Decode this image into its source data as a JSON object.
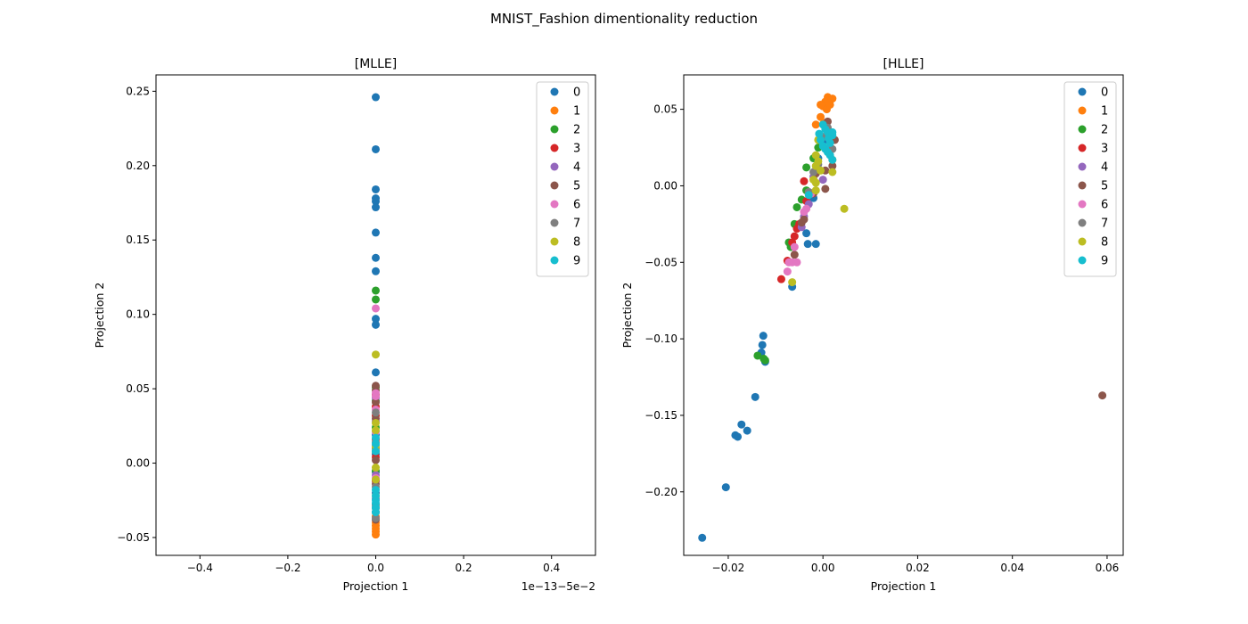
{
  "figure": {
    "suptitle": "MNIST_Fashion dimentionality reduction"
  },
  "palette": [
    "#1f77b4",
    "#ff7f0e",
    "#2ca02c",
    "#d62728",
    "#9467bd",
    "#8c564b",
    "#e377c2",
    "#7f7f7f",
    "#bcbd22",
    "#17becf"
  ],
  "chart_data": [
    {
      "type": "scatter",
      "title": "[MLLE]",
      "xlabel": "Projection 1",
      "ylabel": "Projection 2",
      "xlim": [
        -0.5,
        0.5
      ],
      "ylim": [
        -0.062,
        0.261
      ],
      "xticks": [
        -0.4,
        -0.2,
        0.0,
        0.2,
        0.4
      ],
      "xtick_labels": [
        "−0.4",
        "−0.2",
        "0.0",
        "0.2",
        "0.4"
      ],
      "yticks": [
        -0.05,
        0.0,
        0.05,
        0.1,
        0.15,
        0.2,
        0.25
      ],
      "ytick_labels": [
        "−0.05",
        "0.00",
        "0.05",
        "0.10",
        "0.15",
        "0.20",
        "0.25"
      ],
      "offset_text": "1e−13−5e−2",
      "grid": false,
      "legend": "upper right",
      "series": [
        {
          "name": "0",
          "points": [
            [
              0,
              0.246
            ],
            [
              0,
              0.211
            ],
            [
              0,
              0.184
            ],
            [
              0,
              0.178
            ],
            [
              0,
              0.176
            ],
            [
              0,
              0.172
            ],
            [
              0,
              0.155
            ],
            [
              0,
              0.138
            ],
            [
              0,
              0.129
            ],
            [
              0,
              0.097
            ],
            [
              0,
              0.093
            ],
            [
              0,
              0.061
            ],
            [
              0,
              0.019
            ],
            [
              0,
              0.006
            ],
            [
              0,
              -0.006
            ],
            [
              0,
              -0.02
            ],
            [
              0,
              -0.033
            ]
          ]
        },
        {
          "name": "1",
          "points": [
            [
              0,
              -0.048
            ],
            [
              0,
              -0.046
            ],
            [
              0,
              -0.044
            ],
            [
              0,
              -0.042
            ],
            [
              0,
              -0.04
            ],
            [
              0,
              -0.036
            ],
            [
              0,
              -0.03
            ]
          ]
        },
        {
          "name": "2",
          "points": [
            [
              0,
              0.116
            ],
            [
              0,
              0.11
            ],
            [
              0,
              0.051
            ],
            [
              0,
              0.042
            ],
            [
              0,
              0.024
            ],
            [
              0,
              0.008
            ],
            [
              0,
              -0.005
            ]
          ]
        },
        {
          "name": "3",
          "points": [
            [
              0,
              0.046
            ],
            [
              0,
              0.038
            ],
            [
              0,
              0.032
            ],
            [
              0,
              0.016
            ],
            [
              0,
              0.004
            ],
            [
              0,
              -0.012
            ]
          ]
        },
        {
          "name": "4",
          "points": [
            [
              0,
              0.044
            ],
            [
              0,
              0.028
            ],
            [
              0,
              0.012
            ],
            [
              0,
              -0.008
            ],
            [
              0,
              -0.024
            ]
          ]
        },
        {
          "name": "5",
          "points": [
            [
              0,
              0.052
            ],
            [
              0,
              0.049
            ],
            [
              0,
              0.041
            ],
            [
              0,
              0.03
            ],
            [
              0,
              0.01
            ],
            [
              0,
              0.002
            ],
            [
              0,
              -0.014
            ],
            [
              0,
              -0.028
            ],
            [
              0,
              -0.038
            ]
          ]
        },
        {
          "name": "6",
          "points": [
            [
              0,
              0.104
            ],
            [
              0,
              0.047
            ],
            [
              0,
              0.045
            ],
            [
              0,
              0.036
            ],
            [
              0,
              0.021
            ],
            [
              0,
              -0.01
            ]
          ]
        },
        {
          "name": "7",
          "points": [
            [
              0,
              0.034
            ],
            [
              0,
              0.014
            ],
            [
              0,
              -0.016
            ],
            [
              0,
              -0.03
            ],
            [
              0,
              -0.037
            ]
          ]
        },
        {
          "name": "8",
          "points": [
            [
              0,
              0.073
            ],
            [
              0,
              0.027
            ],
            [
              0,
              0.022
            ],
            [
              0,
              0.011
            ],
            [
              0,
              -0.003
            ],
            [
              0,
              -0.011
            ],
            [
              0,
              -0.022
            ]
          ]
        },
        {
          "name": "9",
          "points": [
            [
              0,
              0.017
            ],
            [
              0,
              0.013
            ],
            [
              0,
              0.008
            ],
            [
              0,
              -0.018
            ],
            [
              0,
              -0.022
            ],
            [
              0,
              -0.027
            ],
            [
              0,
              -0.03
            ],
            [
              0,
              -0.033
            ],
            [
              0,
              -0.025
            ]
          ]
        }
      ]
    },
    {
      "type": "scatter",
      "title": "[HLLE]",
      "xlabel": "Projection 1",
      "ylabel": "Projection 2",
      "xlim": [
        -0.0294,
        0.0634
      ],
      "ylim": [
        -0.2415,
        0.0725
      ],
      "xticks": [
        -0.02,
        0.0,
        0.02,
        0.04,
        0.06
      ],
      "xtick_labels": [
        "−0.02",
        "0.00",
        "0.02",
        "0.04",
        "0.06"
      ],
      "yticks": [
        -0.2,
        -0.15,
        -0.1,
        -0.05,
        0.0,
        0.05
      ],
      "ytick_labels": [
        "−0.20",
        "−0.15",
        "−0.10",
        "−0.05",
        "0.00",
        "0.05"
      ],
      "grid": false,
      "legend": "upper right",
      "series": [
        {
          "name": "0",
          "points": [
            [
              -0.0255,
              -0.23
            ],
            [
              -0.0205,
              -0.197
            ],
            [
              -0.0185,
              -0.163
            ],
            [
              -0.018,
              -0.164
            ],
            [
              -0.0172,
              -0.156
            ],
            [
              -0.016,
              -0.16
            ],
            [
              -0.0143,
              -0.138
            ],
            [
              -0.013,
              -0.109
            ],
            [
              -0.0128,
              -0.104
            ],
            [
              -0.0126,
              -0.098
            ],
            [
              -0.0122,
              -0.115
            ],
            [
              -0.0065,
              -0.066
            ],
            [
              -0.0035,
              -0.031
            ],
            [
              -0.0032,
              -0.038
            ],
            [
              -0.0015,
              -0.038
            ],
            [
              -0.002,
              -0.008
            ],
            [
              0.0005,
              0.03
            ],
            [
              -0.001,
              0.018
            ]
          ]
        },
        {
          "name": "1",
          "points": [
            [
              0.001,
              0.058
            ],
            [
              0.0015,
              0.056
            ],
            [
              0.0005,
              0.055
            ],
            [
              0.002,
              0.057
            ],
            [
              0.0,
              0.052
            ],
            [
              -0.0005,
              0.053
            ],
            [
              0.0012,
              0.054
            ],
            [
              -0.0005,
              0.045
            ],
            [
              0.0008,
              0.05
            ],
            [
              -0.0015,
              0.04
            ],
            [
              0.0002,
              0.041
            ],
            [
              0.0015,
              0.053
            ]
          ]
        },
        {
          "name": "2",
          "points": [
            [
              -0.0138,
              -0.111
            ],
            [
              -0.0125,
              -0.113
            ],
            [
              -0.0122,
              -0.114
            ],
            [
              -0.0068,
              -0.04
            ],
            [
              -0.0072,
              -0.037
            ],
            [
              -0.006,
              -0.025
            ],
            [
              -0.0055,
              -0.014
            ],
            [
              -0.0045,
              -0.009
            ],
            [
              -0.0035,
              0.012
            ],
            [
              -0.002,
              0.018
            ],
            [
              -0.001,
              0.025
            ],
            [
              -0.0035,
              -0.003
            ]
          ]
        },
        {
          "name": "3",
          "points": [
            [
              -0.0088,
              -0.061
            ],
            [
              -0.0075,
              -0.049
            ],
            [
              -0.0065,
              -0.037
            ],
            [
              -0.006,
              -0.033
            ],
            [
              -0.0055,
              -0.028
            ],
            [
              -0.005,
              -0.025
            ],
            [
              -0.004,
              0.003
            ],
            [
              -0.0035,
              -0.01
            ]
          ]
        },
        {
          "name": "4",
          "points": [
            [
              -0.003,
              -0.012
            ],
            [
              -0.002,
              0.006
            ],
            [
              0.0,
              0.004
            ],
            [
              0.001,
              0.024
            ],
            [
              0.002,
              0.03
            ],
            [
              -0.004,
              -0.02
            ],
            [
              -0.0045,
              -0.027
            ]
          ]
        },
        {
          "name": "5",
          "points": [
            [
              0.059,
              -0.137
            ],
            [
              -0.006,
              -0.045
            ],
            [
              -0.0045,
              -0.024
            ],
            [
              -0.004,
              -0.022
            ],
            [
              -0.002,
              -0.005
            ],
            [
              0.0005,
              -0.002
            ],
            [
              0.002,
              0.013
            ],
            [
              0.0025,
              0.03
            ],
            [
              -0.0015,
              0.008
            ],
            [
              0.0005,
              0.01
            ],
            [
              0.001,
              0.042
            ]
          ]
        },
        {
          "name": "6",
          "points": [
            [
              -0.0075,
              -0.056
            ],
            [
              -0.0072,
              -0.05
            ],
            [
              -0.0065,
              -0.05
            ],
            [
              -0.0055,
              -0.05
            ],
            [
              -0.006,
              -0.04
            ],
            [
              -0.004,
              -0.017
            ],
            [
              -0.0035,
              -0.015
            ],
            [
              -0.0025,
              -0.005
            ]
          ]
        },
        {
          "name": "7",
          "points": [
            [
              -0.003,
              -0.004
            ],
            [
              -0.001,
              0.014
            ],
            [
              0.0,
              0.032
            ],
            [
              0.001,
              0.038
            ],
            [
              0.002,
              0.024
            ],
            [
              -0.002,
              0.009
            ]
          ]
        },
        {
          "name": "8",
          "points": [
            [
              0.0045,
              -0.015
            ],
            [
              -0.0065,
              -0.063
            ],
            [
              -0.0015,
              -0.003
            ],
            [
              -0.0015,
              0.002
            ],
            [
              -0.002,
              0.004
            ],
            [
              -0.0015,
              0.013
            ],
            [
              -0.001,
              0.016
            ],
            [
              -0.0015,
              0.02
            ],
            [
              -0.0005,
              0.01
            ],
            [
              -0.001,
              0.03
            ],
            [
              0.002,
              0.009
            ],
            [
              0.002,
              0.017
            ]
          ]
        },
        {
          "name": "9",
          "points": [
            [
              0.0,
              0.04
            ],
            [
              0.0005,
              0.037
            ],
            [
              0.001,
              0.035
            ],
            [
              0.0015,
              0.028
            ],
            [
              0.0005,
              0.024
            ],
            [
              0.002,
              0.033
            ],
            [
              -0.0005,
              0.03
            ],
            [
              0.001,
              0.022
            ],
            [
              0.0015,
              0.02
            ],
            [
              0.002,
              0.017
            ],
            [
              -0.003,
              -0.006
            ],
            [
              0.0,
              0.026
            ],
            [
              0.0012,
              0.031
            ],
            [
              -0.0008,
              0.034
            ],
            [
              0.002,
              0.035
            ]
          ]
        }
      ]
    }
  ]
}
